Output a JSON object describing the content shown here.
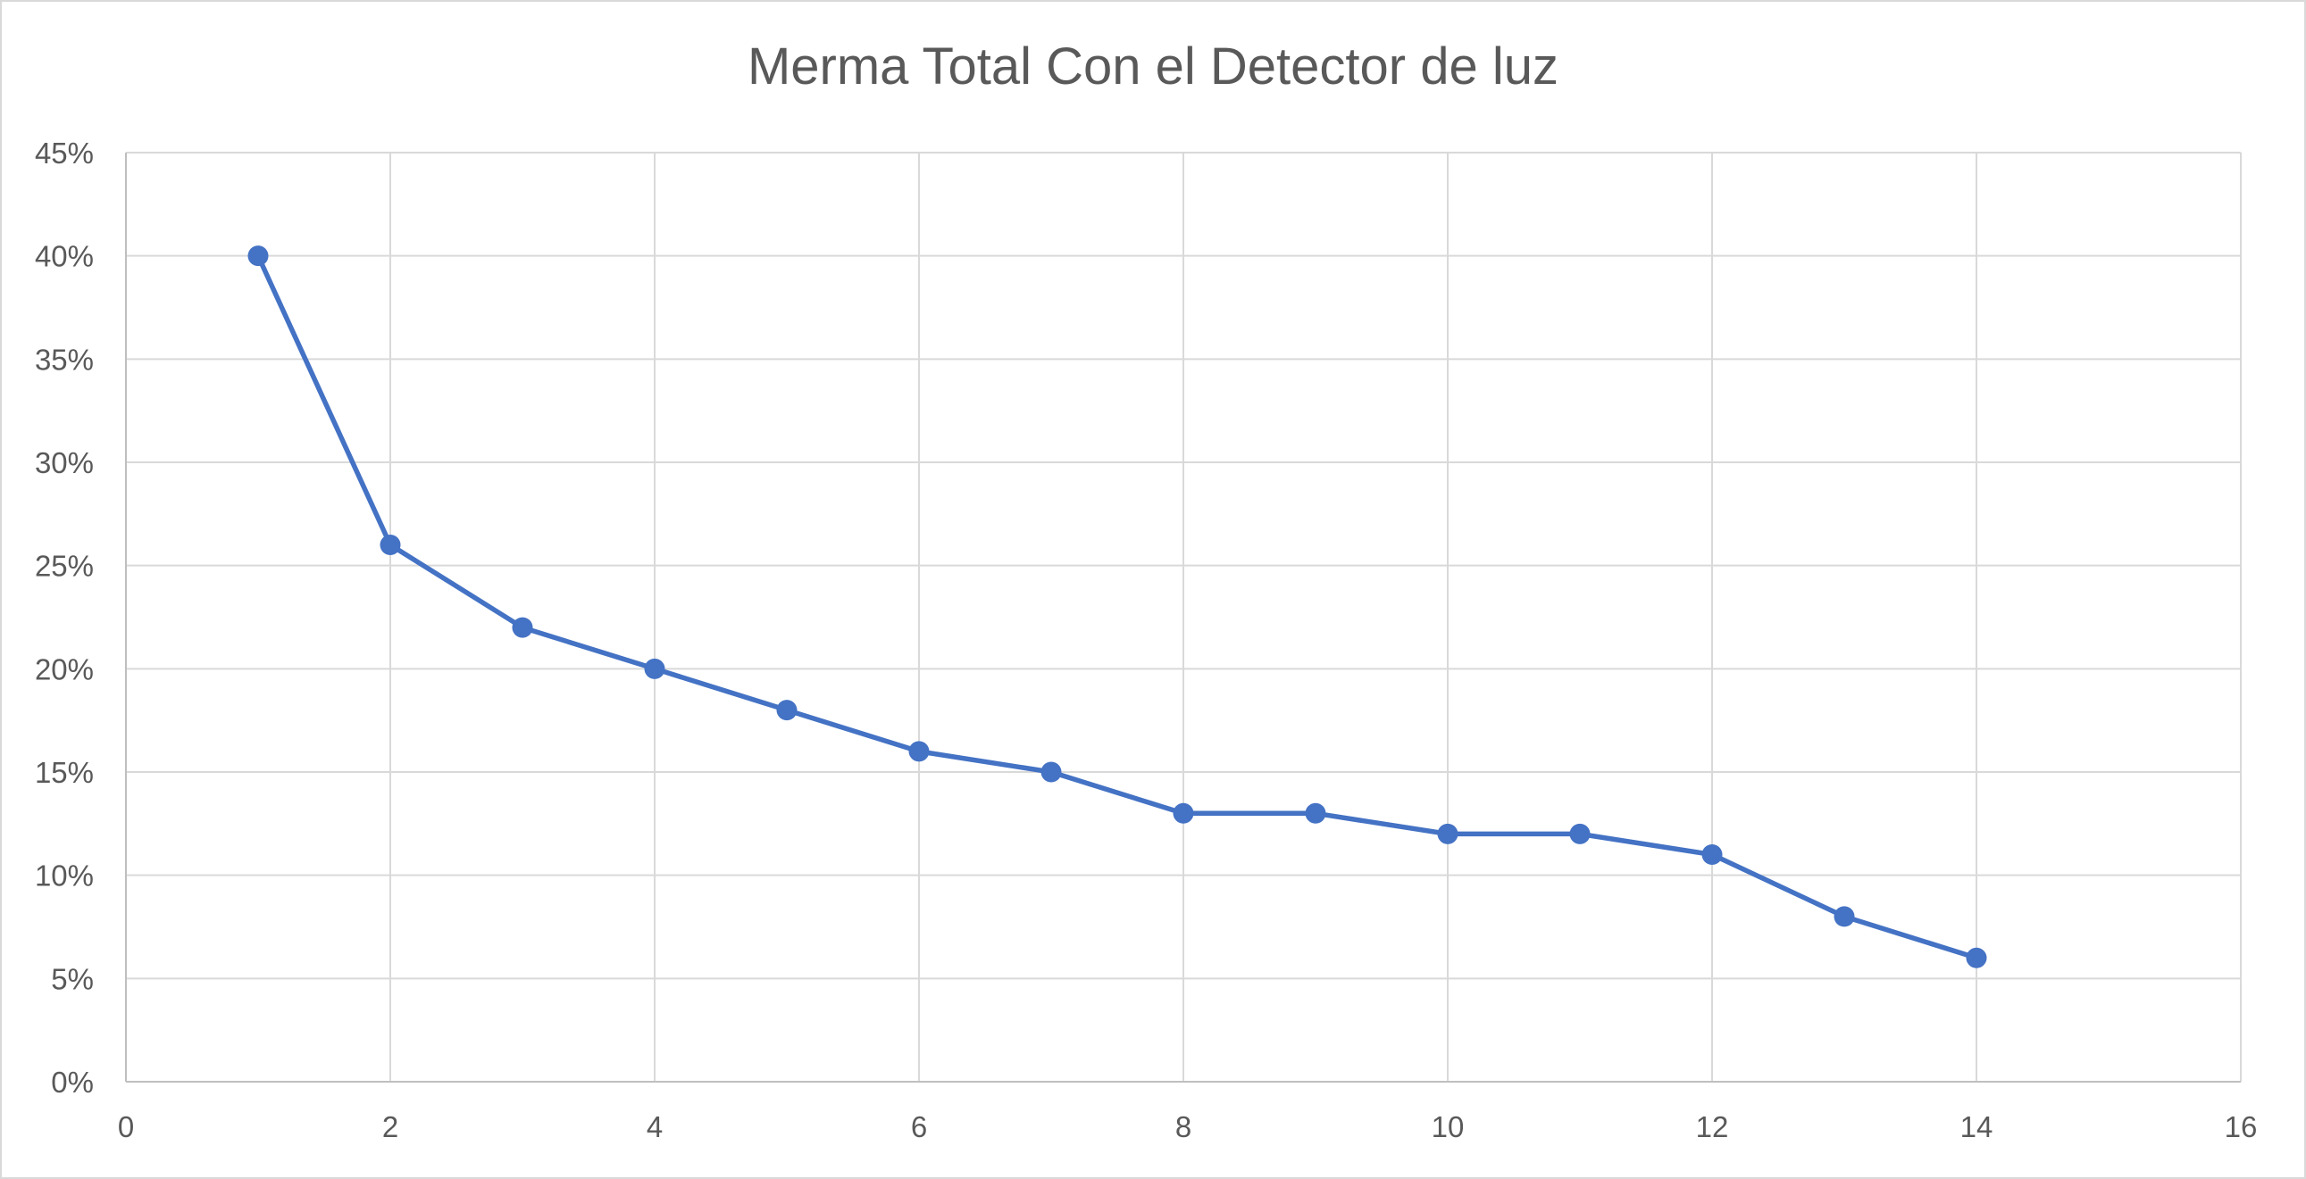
{
  "chart_data": {
    "type": "scatter",
    "title": "Merma Total Con el Detector de luz",
    "xlabel": "",
    "ylabel": "",
    "xlim": [
      0,
      16
    ],
    "ylim": [
      0,
      0.45
    ],
    "x_ticks": [
      0,
      2,
      4,
      6,
      8,
      10,
      12,
      14,
      16
    ],
    "x_tick_labels": [
      "0",
      "2",
      "4",
      "6",
      "8",
      "10",
      "12",
      "14",
      "16"
    ],
    "y_ticks": [
      0,
      0.05,
      0.1,
      0.15,
      0.2,
      0.25,
      0.3,
      0.35,
      0.4,
      0.45
    ],
    "y_tick_labels": [
      "0%",
      "5%",
      "10%",
      "15%",
      "20%",
      "25%",
      "30%",
      "35%",
      "40%",
      "45%"
    ],
    "grid": true,
    "legend": "none",
    "series": [
      {
        "color": "#4472c4",
        "lines": true,
        "markers": true,
        "x": [
          1,
          2,
          3,
          4,
          5,
          6,
          7,
          8,
          9,
          10,
          11,
          12,
          13,
          14
        ],
        "y": [
          0.4,
          0.26,
          0.22,
          0.2,
          0.18,
          0.16,
          0.15,
          0.13,
          0.13,
          0.12,
          0.12,
          0.11,
          0.08,
          0.06
        ]
      }
    ]
  }
}
